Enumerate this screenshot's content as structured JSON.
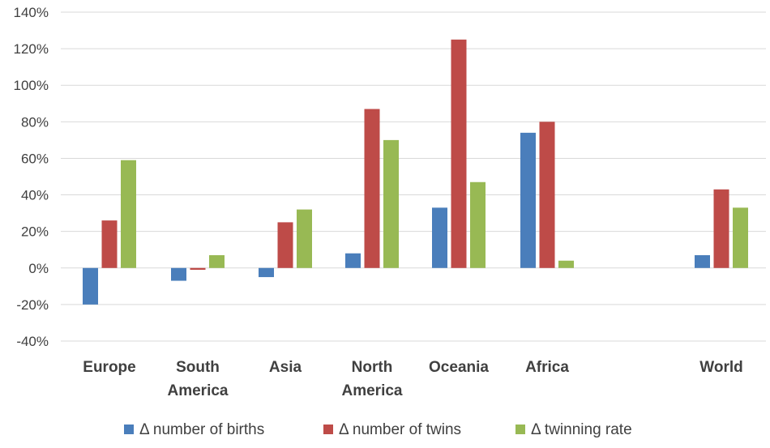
{
  "chart_data": {
    "type": "bar",
    "categories": [
      [
        "Europe"
      ],
      [
        "South",
        "America"
      ],
      [
        "Asia"
      ],
      [
        "North",
        "America"
      ],
      [
        "Oceania"
      ],
      [
        "Africa"
      ],
      [
        ""
      ],
      [
        "World"
      ]
    ],
    "series": [
      {
        "name": "Δ number of births",
        "color": "#4a7ebb",
        "values": [
          -20,
          -7,
          -5,
          8,
          33,
          74,
          null,
          7
        ]
      },
      {
        "name": "Δ number of twins",
        "color": "#be4b48",
        "values": [
          26,
          -1,
          25,
          87,
          125,
          80,
          null,
          43
        ]
      },
      {
        "name": "Δ twinning rate",
        "color": "#98b954",
        "values": [
          59,
          7,
          32,
          70,
          47,
          4,
          null,
          33
        ]
      }
    ],
    "ylim": [
      -40,
      140
    ],
    "yticks": [
      -40,
      -20,
      0,
      20,
      40,
      60,
      80,
      100,
      120,
      140
    ],
    "ytick_suffix": "%",
    "grid": true,
    "legend_position": "bottom",
    "gridline_color": "#d9d9d9",
    "text_color": "#404040"
  }
}
